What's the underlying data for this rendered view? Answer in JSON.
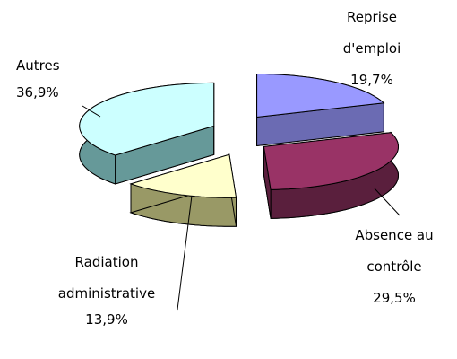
{
  "chart_data": {
    "type": "pie",
    "categories": [
      "Reprise d'emploi",
      "Absence au contrôle",
      "Radiation administrative",
      "Autres"
    ],
    "values": [
      19.7,
      29.5,
      13.9,
      36.9
    ],
    "value_labels": [
      "19,7%",
      "29,5%",
      "13,9%",
      "36,9%"
    ],
    "colors": [
      "#9999ff",
      "#993366",
      "#ffffcc",
      "#ccffff"
    ],
    "side_colors": [
      "#6b6bb3",
      "#5a1f3d",
      "#999966",
      "#669999"
    ]
  }
}
